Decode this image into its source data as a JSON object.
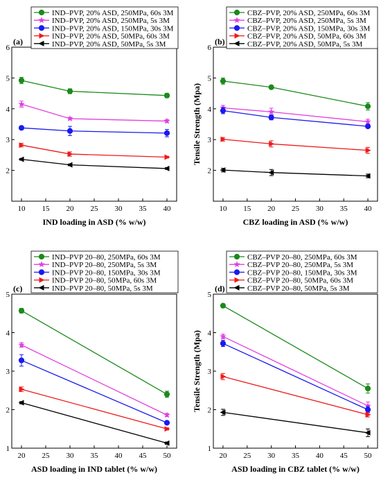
{
  "chart_data": [
    {
      "panel": "(a)",
      "type": "line",
      "xlabel": "IND loading in ASD (% w/w)",
      "ylabel": "",
      "x": [
        10,
        20,
        40
      ],
      "xlim": [
        8,
        42
      ],
      "xticks": [
        10,
        15,
        20,
        25,
        30,
        35,
        40
      ],
      "ylim": [
        1,
        6
      ],
      "yticks": [
        2,
        3,
        4,
        5,
        6
      ],
      "legend_position": "top",
      "series": [
        {
          "name": "IND–PVP, 20% ASD, 250MPa, 60s 3M",
          "color": "#1a8a1a",
          "marker": "circle",
          "values": [
            4.92,
            4.57,
            4.43
          ],
          "errors": [
            0.1,
            0.08,
            0.07
          ]
        },
        {
          "name": "IND–PVP, 20% ASD, 250MPa, 5s 3M",
          "color": "#e040e0",
          "marker": "star",
          "values": [
            4.15,
            3.68,
            3.6
          ],
          "errors": [
            0.1,
            0.04,
            0.05
          ]
        },
        {
          "name": "IND–PVP, 20% ASD, 150MPa, 30s 3M",
          "color": "#1a1aee",
          "marker": "circle",
          "values": [
            3.38,
            3.28,
            3.21
          ],
          "errors": [
            0.03,
            0.15,
            0.12
          ]
        },
        {
          "name": "IND–PVP, 20% ASD, 50MPa, 60s 3M",
          "color": "#ee1a1a",
          "marker": "triangle-right",
          "values": [
            2.82,
            2.53,
            2.43
          ],
          "errors": [
            0.06,
            0.07,
            0.03
          ]
        },
        {
          "name": "IND–PVP, 20% ASD, 50MPa, 5s 3M",
          "color": "#000000",
          "marker": "triangle-left",
          "values": [
            2.36,
            2.18,
            2.06
          ],
          "errors": [
            0.03,
            0.03,
            0.03
          ]
        }
      ]
    },
    {
      "panel": "(b)",
      "type": "line",
      "xlabel": "CBZ loading in ASD (% w/w)",
      "ylabel": "Tensile Strength (Mpa)",
      "x": [
        10,
        20,
        40
      ],
      "xlim": [
        8,
        42
      ],
      "xticks": [
        10,
        15,
        20,
        25,
        30,
        35,
        40
      ],
      "ylim": [
        1,
        6
      ],
      "yticks": [
        2,
        3,
        4,
        5,
        6
      ],
      "legend_position": "top",
      "series": [
        {
          "name": "CBZ–PVP, 20% ASD, 250MPa, 60s 3M",
          "color": "#1a8a1a",
          "marker": "circle",
          "values": [
            4.9,
            4.7,
            4.08
          ],
          "errors": [
            0.1,
            0.05,
            0.12
          ]
        },
        {
          "name": "CBZ–PVP, 20% ASD, 250MPa, 5s 3M",
          "color": "#e040e0",
          "marker": "star",
          "values": [
            4.03,
            3.9,
            3.58
          ],
          "errors": [
            0.08,
            0.12,
            0.08
          ]
        },
        {
          "name": "CBZ–PVP, 20% ASD, 150MPa, 30s 3M",
          "color": "#1a1aee",
          "marker": "circle",
          "values": [
            3.94,
            3.72,
            3.43
          ],
          "errors": [
            0.1,
            0.08,
            0.05
          ]
        },
        {
          "name": "CBZ–PVP, 20% ASD, 50MPa, 60s 3M",
          "color": "#ee1a1a",
          "marker": "triangle-right",
          "values": [
            3.01,
            2.86,
            2.65
          ],
          "errors": [
            0.06,
            0.1,
            0.1
          ]
        },
        {
          "name": "CBZ–PVP, 20% ASD, 50MPa, 5s 3M",
          "color": "#000000",
          "marker": "triangle-left",
          "values": [
            2.01,
            1.93,
            1.82
          ],
          "errors": [
            0.06,
            0.1,
            0.06
          ]
        }
      ]
    },
    {
      "panel": "(c)",
      "type": "line",
      "xlabel": "ASD loading in IND tablet (% w/w)",
      "ylabel": "",
      "x": [
        20,
        50
      ],
      "xlim": [
        18,
        52
      ],
      "xticks": [
        20,
        25,
        30,
        35,
        40,
        45,
        50
      ],
      "ylim": [
        1,
        5
      ],
      "yticks": [
        1,
        2,
        3,
        4,
        5
      ],
      "legend_position": "top",
      "series": [
        {
          "name": "IND–PVP 20–80, 250MPa, 60s 3M",
          "color": "#1a8a1a",
          "marker": "circle",
          "values": [
            4.57,
            2.4
          ],
          "errors": [
            0.06,
            0.08
          ]
        },
        {
          "name": "IND–PVP 20–80, 250MPa, 5s 3M",
          "color": "#e040e0",
          "marker": "star",
          "values": [
            3.68,
            1.86
          ],
          "errors": [
            0.06,
            0.04
          ]
        },
        {
          "name": "IND–PVP 20–80, 150MPa, 30s 3M",
          "color": "#1a1aee",
          "marker": "circle",
          "values": [
            3.28,
            1.66
          ],
          "errors": [
            0.15,
            0.04
          ]
        },
        {
          "name": "IND–PVP 20–80, 50MPa, 60s 3M",
          "color": "#ee1a1a",
          "marker": "triangle-right",
          "values": [
            2.53,
            1.5
          ],
          "errors": [
            0.06,
            0.03
          ]
        },
        {
          "name": "IND–PVP 20–80, 50MPa, 5s 3M",
          "color": "#000000",
          "marker": "triangle-left",
          "values": [
            2.18,
            1.13
          ],
          "errors": [
            0.03,
            0.03
          ]
        }
      ]
    },
    {
      "panel": "(d)",
      "type": "line",
      "xlabel": "ASD loading in CBZ tablet (% w/w)",
      "ylabel": "Tensile Strength (Mpa)",
      "x": [
        20,
        50
      ],
      "xlim": [
        18,
        52
      ],
      "xticks": [
        20,
        25,
        30,
        35,
        40,
        45,
        50
      ],
      "ylim": [
        1,
        5
      ],
      "yticks": [
        1,
        2,
        3,
        4,
        5
      ],
      "legend_position": "top",
      "series": [
        {
          "name": "CBZ–PVP 20–80, 250MPa, 60s 3M",
          "color": "#1a8a1a",
          "marker": "circle",
          "values": [
            4.7,
            2.55
          ],
          "errors": [
            0.05,
            0.12
          ]
        },
        {
          "name": "CBZ–PVP 20–80, 250MPa, 5s 3M",
          "color": "#e040e0",
          "marker": "star",
          "values": [
            3.9,
            2.1
          ],
          "errors": [
            0.06,
            0.1
          ]
        },
        {
          "name": "CBZ–PVP 20–80, 150MPa, 30s 3M",
          "color": "#1a1aee",
          "marker": "circle",
          "values": [
            3.72,
            2.0
          ],
          "errors": [
            0.08,
            0.08
          ]
        },
        {
          "name": "CBZ–PVP 20–80, 50MPa, 60s 3M",
          "color": "#ee1a1a",
          "marker": "triangle-right",
          "values": [
            2.86,
            1.87
          ],
          "errors": [
            0.08,
            0.06
          ]
        },
        {
          "name": "CBZ–PVP 20–80, 50MPa, 5s 3M",
          "color": "#000000",
          "marker": "triangle-left",
          "values": [
            1.93,
            1.4
          ],
          "errors": [
            0.08,
            0.1
          ]
        }
      ]
    }
  ]
}
